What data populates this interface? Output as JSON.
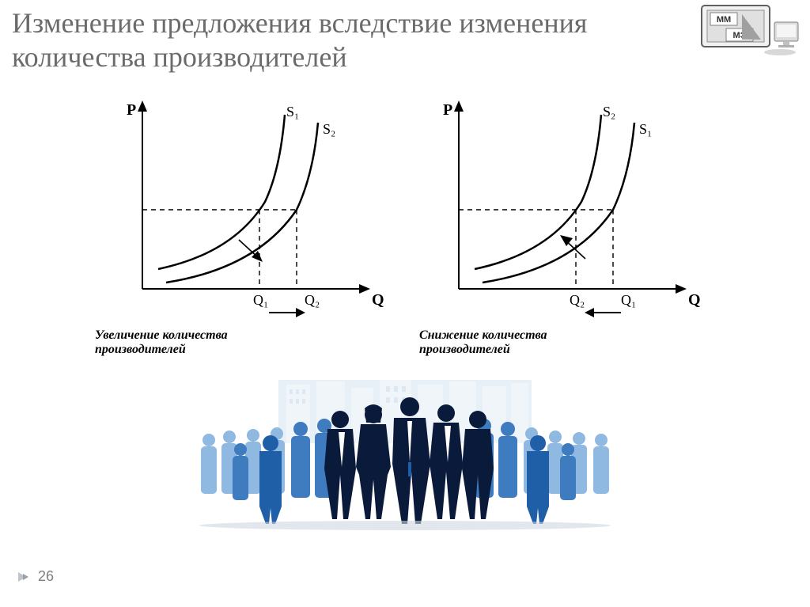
{
  "title": "Изменение предложения вследствие изменения количества производителей",
  "logo": {
    "top": "MM",
    "bottom": "МЭ",
    "bg": "#e8e8e8",
    "frame": "#606060"
  },
  "chart_left": {
    "y_label": "P",
    "x_label": "Q",
    "curve_1_label": "S₁",
    "curve_2_label": "S₂",
    "q_tick_1": "Q₁",
    "q_tick_2": "Q₂",
    "caption": "Увеличение количества\nпроизводителей",
    "colors": {
      "axis": "#000000",
      "curve": "#000000",
      "dash": "#000000"
    },
    "shift_direction": "right",
    "arrow_below_direction": "right"
  },
  "chart_right": {
    "y_label": "P",
    "x_label": "Q",
    "curve_1_label": "S₂",
    "curve_2_label": "S₁",
    "q_tick_1": "Q₂",
    "q_tick_2": "Q₁",
    "caption": "Снижение количества\nпроизводителей",
    "colors": {
      "axis": "#000000",
      "curve": "#000000",
      "dash": "#000000"
    },
    "shift_direction": "left",
    "arrow_below_direction": "left"
  },
  "people": {
    "building_color": "#bcd4eb",
    "bg_light": "#8fb9e0",
    "mid": "#3f7bbf",
    "dark": "#0a1a3a",
    "accent": "#1f5fa8"
  },
  "footer": {
    "page": "26",
    "bullet_color": "#9aa0a6"
  }
}
